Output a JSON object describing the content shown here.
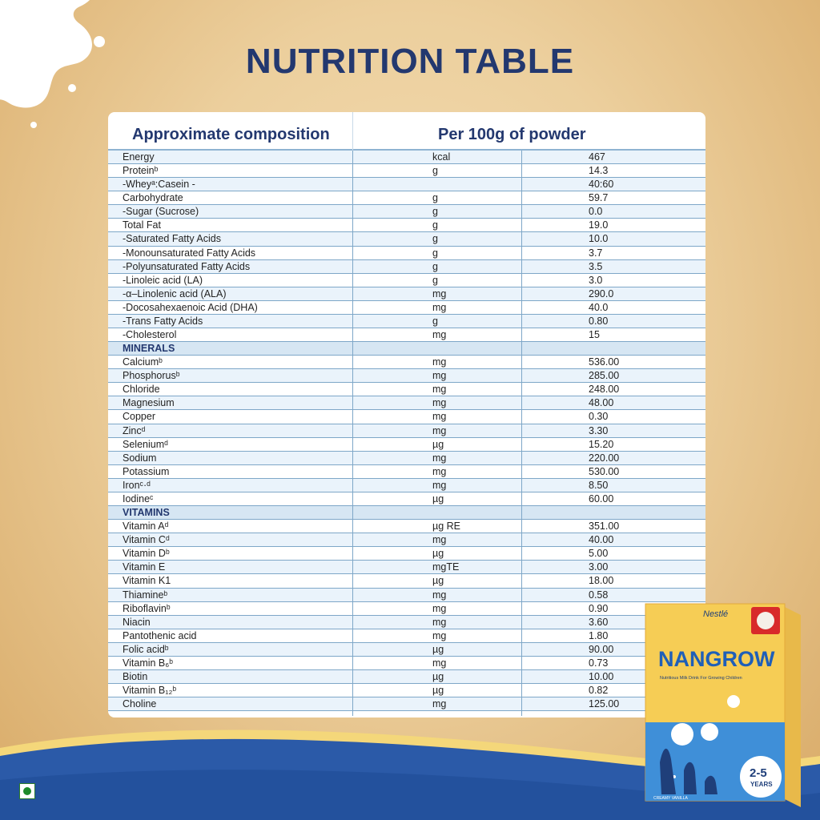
{
  "title": "NUTRITION TABLE",
  "table": {
    "col1_header": "Approximate composition",
    "col2_header": "Per 100g of powder",
    "rows": [
      {
        "name": "Energy",
        "unit": "kcal",
        "value": "467"
      },
      {
        "name": "Proteinᵇ",
        "unit": "g",
        "value": "14.3"
      },
      {
        "name": "   -Wheyᵃ:Casein -",
        "unit": "",
        "value": "40:60"
      },
      {
        "name": "Carbohydrate",
        "unit": "g",
        "value": "59.7"
      },
      {
        "name": "  -Sugar (Sucrose)",
        "unit": "g",
        "value": "0.0"
      },
      {
        "name": "Total Fat",
        "unit": "g",
        "value": "19.0"
      },
      {
        "name": "-Saturated Fatty Acids",
        "unit": "g",
        "value": "10.0"
      },
      {
        "name": "-Monounsaturated Fatty Acids",
        "unit": "g",
        "value": "3.7"
      },
      {
        "name": "-Polyunsaturated Fatty Acids",
        "unit": "g",
        "value": "3.5"
      },
      {
        "name": "  -Linoleic acid (LA)",
        "unit": "g",
        "value": "3.0"
      },
      {
        "name": "  -α–Linolenic acid (ALA)",
        "unit": "mg",
        "value": "290.0"
      },
      {
        "name": "  -Docosahexaenoic Acid (DHA)",
        "unit": "mg",
        "value": "40.0"
      },
      {
        "name": "-Trans Fatty Acids",
        "unit": "g",
        "value": "0.80"
      },
      {
        "name": "-Cholesterol",
        "unit": "mg",
        "value": "15"
      },
      {
        "name": "MINERALS",
        "unit": "",
        "value": "",
        "section": true
      },
      {
        "name": "Calciumᵇ",
        "unit": "mg",
        "value": "536.00"
      },
      {
        "name": "Phosphorusᵇ",
        "unit": "mg",
        "value": "285.00"
      },
      {
        "name": "Chloride",
        "unit": "mg",
        "value": "248.00"
      },
      {
        "name": "Magnesium",
        "unit": "mg",
        "value": "48.00"
      },
      {
        "name": "Copper",
        "unit": "mg",
        "value": "0.30"
      },
      {
        "name": "Zincᵈ",
        "unit": "mg",
        "value": "3.30"
      },
      {
        "name": "Seleniumᵈ",
        "unit": "µg",
        "value": "15.20"
      },
      {
        "name": "Sodium",
        "unit": "mg",
        "value": "220.00"
      },
      {
        "name": "Potassium",
        "unit": "mg",
        "value": "530.00"
      },
      {
        "name": "Ironᶜ·ᵈ",
        "unit": "mg",
        "value": "8.50"
      },
      {
        "name": "Iodineᶜ",
        "unit": "µg",
        "value": "60.00"
      },
      {
        "name": "VITAMINS",
        "unit": "",
        "value": "",
        "section": true
      },
      {
        "name": "Vitamin Aᵈ",
        "unit": "µg RE",
        "value": "351.00"
      },
      {
        "name": "Vitamin Cᵈ",
        "unit": "mg",
        "value": "40.00"
      },
      {
        "name": "Vitamin Dᵇ",
        "unit": "µg",
        "value": "5.00"
      },
      {
        "name": "Vitamin E",
        "unit": "mgTE",
        "value": "3.00"
      },
      {
        "name": "Vitamin K1",
        "unit": "µg",
        "value": "18.00"
      },
      {
        "name": "Thiamineᵇ",
        "unit": "mg",
        "value": "0.58"
      },
      {
        "name": "Riboflavinᵇ",
        "unit": "mg",
        "value": "0.90"
      },
      {
        "name": "Niacin",
        "unit": "mg",
        "value": "3.60"
      },
      {
        "name": "Pantothenic acid",
        "unit": "mg",
        "value": "1.80"
      },
      {
        "name": "Folic acidᵇ",
        "unit": "µg",
        "value": "90.00"
      },
      {
        "name": "Vitamin B₆ᵇ",
        "unit": "mg",
        "value": "0.73"
      },
      {
        "name": "Biotin",
        "unit": "µg",
        "value": "10.00"
      },
      {
        "name": "Vitamin B₁₂ᵇ",
        "unit": "µg",
        "value": "0.82"
      },
      {
        "name": "Choline",
        "unit": "mg",
        "value": "125.00"
      }
    ]
  },
  "product": {
    "brand": "Nestlé",
    "name": "NANGROW",
    "tagline": "Nutritious Milk Drink For Growing Children",
    "age": "2-5",
    "age_unit": "YEARS",
    "flavour": "CREAMY VANILLA"
  },
  "colors": {
    "title": "#23386f",
    "header_text": "#23386f",
    "table_line": "#7ea7c8",
    "row_alt": "#eaf3fb",
    "background": "#eccf9d",
    "footer_blue": "#2b5aa8"
  }
}
